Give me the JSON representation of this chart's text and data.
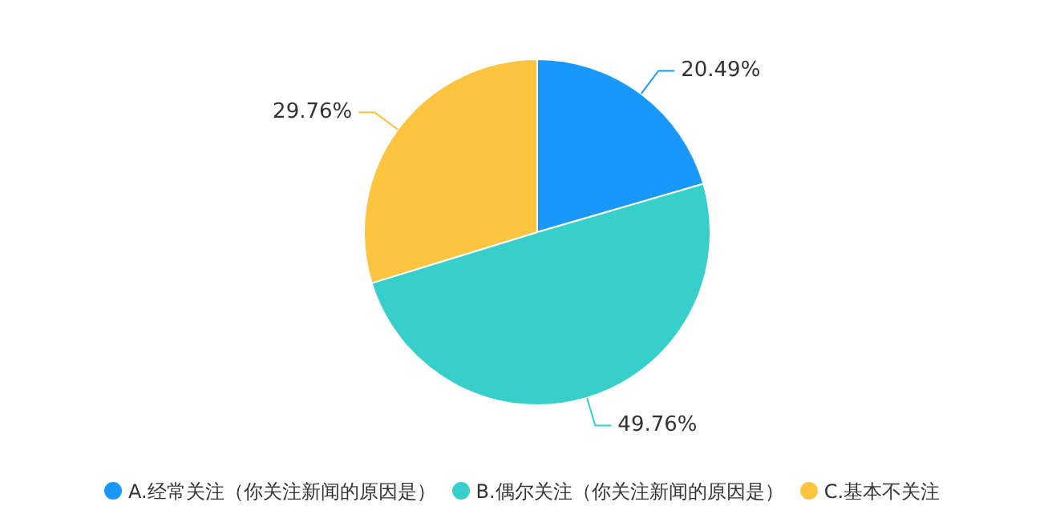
{
  "chart_data": {
    "type": "pie",
    "categories": [
      "A.经常关注（你关注新闻的原因是）",
      "B.偶尔关注（你关注新闻的原因是）",
      "C.基本不关注"
    ],
    "values": [
      20.49,
      49.76,
      29.76
    ],
    "colors": [
      "#1a97fb",
      "#36cfc9",
      "#fcc43f"
    ],
    "value_labels": [
      "20.49%",
      "49.76%",
      "29.76%"
    ],
    "legend": "bottom"
  }
}
